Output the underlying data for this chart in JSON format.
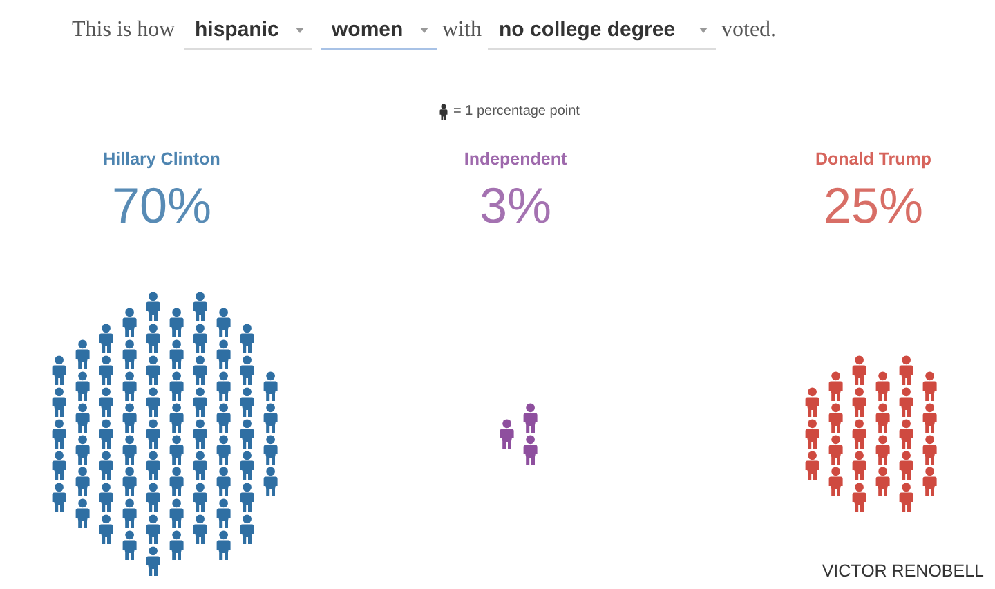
{
  "chart_data": {
    "type": "other",
    "annotations": [
      "This is how",
      "hispanic",
      "women",
      "with",
      "no college degree",
      "voted.",
      "= 1 percentage point",
      "VICTOR RENOBELL"
    ],
    "categories": [
      "Hillary Clinton",
      "Independent",
      "Donald Trump"
    ],
    "values": [
      70,
      3,
      25
    ],
    "colors": [
      "#2f6fa3",
      "#8e4f9e",
      "#cf4a40"
    ],
    "value_labels": [
      "70%",
      "3%",
      "25%"
    ]
  }
}
